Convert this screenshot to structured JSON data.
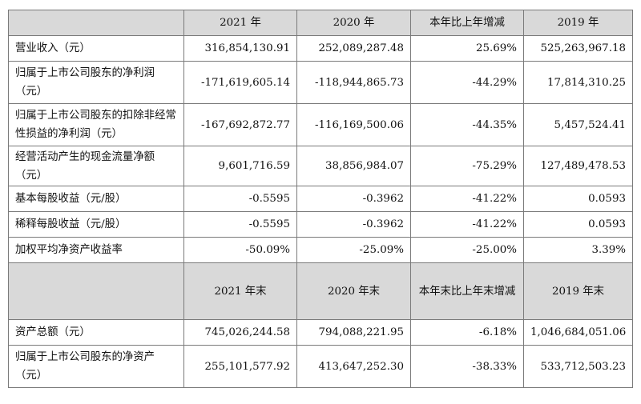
{
  "table": {
    "header1": [
      "",
      "2021 年",
      "2020 年",
      "本年比上年增减",
      "2019 年"
    ],
    "rows1": [
      {
        "label": "营业收入（元）",
        "v2021": "316,854,130.91",
        "v2020": "252,089,287.48",
        "change": "25.69%",
        "v2019": "525,263,967.18"
      },
      {
        "label": "归属于上市公司股东的净利润（元）",
        "v2021": "-171,619,605.14",
        "v2020": "-118,944,865.73",
        "change": "-44.29%",
        "v2019": "17,814,310.25"
      },
      {
        "label": "归属于上市公司股东的扣除非经常性损益的净利润（元）",
        "v2021": "-167,692,872.77",
        "v2020": "-116,169,500.06",
        "change": "-44.35%",
        "v2019": "5,457,524.41"
      },
      {
        "label": "经营活动产生的现金流量净额（元）",
        "v2021": "9,601,716.59",
        "v2020": "38,856,984.07",
        "change": "-75.29%",
        "v2019": "127,489,478.53"
      },
      {
        "label": "基本每股收益（元/股）",
        "v2021": "-0.5595",
        "v2020": "-0.3962",
        "change": "-41.22%",
        "v2019": "0.0593"
      },
      {
        "label": "稀释每股收益（元/股）",
        "v2021": "-0.5595",
        "v2020": "-0.3962",
        "change": "-41.22%",
        "v2019": "0.0593"
      },
      {
        "label": "加权平均净资产收益率",
        "v2021": "-50.09%",
        "v2020": "-25.09%",
        "change": "-25.00%",
        "v2019": "3.39%"
      }
    ],
    "header2": [
      "",
      "2021 年末",
      "2020 年末",
      "本年末比上年末增减",
      "2019 年末"
    ],
    "rows2": [
      {
        "label": "资产总额（元）",
        "v2021": "745,026,244.58",
        "v2020": "794,088,221.95",
        "change": "-6.18%",
        "v2019": "1,046,684,051.06"
      },
      {
        "label": "归属于上市公司股东的净资产（元）",
        "v2021": "255,101,577.92",
        "v2020": "413,647,252.30",
        "change": "-38.33%",
        "v2019": "533,712,503.23"
      }
    ]
  }
}
